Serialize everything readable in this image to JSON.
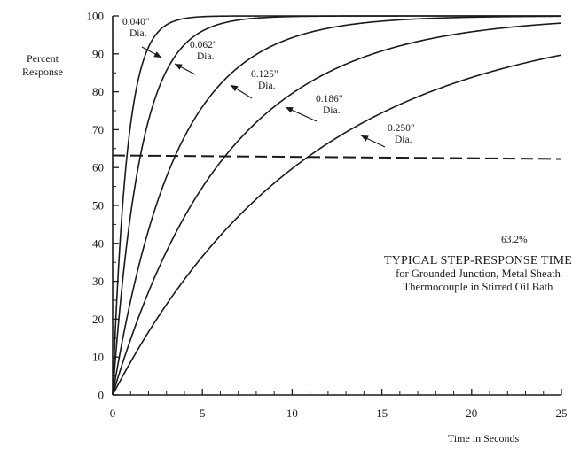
{
  "chart_data": {
    "type": "line",
    "title": "TYPICAL STEP-RESPONSE TIME",
    "subtitle": [
      "for Grounded Junction, Metal Sheath",
      "Thermocouple in Stirred Oil Bath"
    ],
    "xlabel": "Time in Seconds",
    "ylabel": [
      "Percent",
      "Response"
    ],
    "xlim": [
      0,
      25
    ],
    "ylim": [
      0,
      100
    ],
    "xticks": [
      "0",
      "5",
      "10",
      "15",
      "20",
      "25"
    ],
    "yticks": [
      "0",
      "10",
      "20",
      "30",
      "40",
      "50",
      "60",
      "70",
      "80",
      "90",
      "100"
    ],
    "series": [
      {
        "label": [
          "0.040\"",
          "Dia."
        ],
        "time_constant": 0.8
      },
      {
        "label": [
          "0.062\"",
          "Dia."
        ],
        "time_constant": 1.55
      },
      {
        "label": [
          "0.125\"",
          "Dia."
        ],
        "time_constant": 3.5
      },
      {
        "label": [
          "0.186\"",
          "Dia."
        ],
        "time_constant": 6.3
      },
      {
        "label": [
          "0.250\"",
          "Dia."
        ],
        "time_constant": 11.0
      }
    ],
    "reference_line": {
      "y": 63.2,
      "label": "63.2%",
      "style": "dashed"
    }
  }
}
